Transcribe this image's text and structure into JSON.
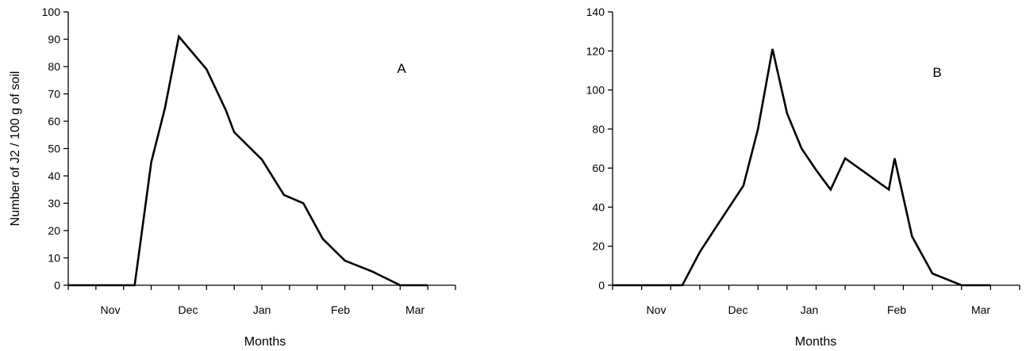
{
  "chart_data": [
    {
      "type": "line",
      "panel_label": "A",
      "xlabel": "Months",
      "ylabel": "Number of J2 / 100 g of soil",
      "ylim": [
        0,
        100
      ],
      "yticks": [
        0,
        10,
        20,
        30,
        40,
        50,
        60,
        70,
        80,
        90,
        100
      ],
      "categories": [
        "Nov",
        "Dec",
        "Jan",
        "Feb",
        "Mar"
      ],
      "x_range": [
        0,
        14
      ],
      "grid": false,
      "legend": "none",
      "color": "#000000",
      "x": [
        0,
        1,
        2,
        2.4,
        3,
        3.5,
        4,
        5,
        5.7,
        6,
        7,
        7.8,
        8.5,
        9.2,
        10,
        11,
        12,
        13
      ],
      "values": [
        0,
        0,
        0,
        0,
        45,
        65,
        91,
        79,
        64,
        56,
        46,
        33,
        30,
        17,
        9,
        5,
        0,
        0
      ]
    },
    {
      "type": "line",
      "panel_label": "B",
      "xlabel": "Months",
      "ylabel": "",
      "ylim": [
        0,
        140
      ],
      "yticks": [
        0,
        20,
        40,
        60,
        80,
        100,
        120,
        140
      ],
      "categories": [
        "Nov",
        "Dec",
        "Jan",
        "Feb",
        "Mar"
      ],
      "x_range": [
        0,
        14
      ],
      "grid": false,
      "legend": "none",
      "color": "#000000",
      "x": [
        0,
        1,
        1.5,
        2.4,
        3,
        3.7,
        4.5,
        5,
        5.5,
        6,
        6.5,
        7,
        7.5,
        8,
        9.5,
        9.7,
        10.3,
        11,
        12,
        13
      ],
      "values": [
        0,
        0,
        0,
        0,
        17,
        33,
        51,
        80,
        121,
        88,
        70,
        59,
        49,
        65,
        49,
        65,
        25,
        6,
        0,
        0
      ]
    }
  ]
}
